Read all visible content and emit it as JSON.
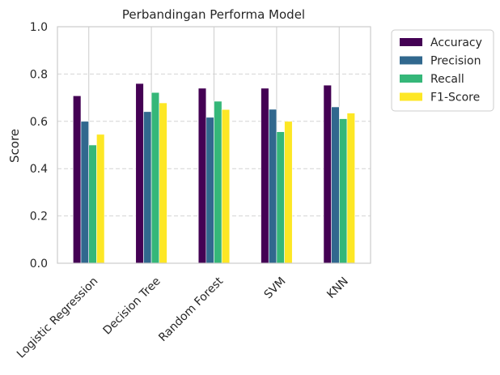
{
  "chart_data": {
    "type": "bar",
    "title": "Perbandingan Performa Model",
    "xlabel": "",
    "ylabel": "Score",
    "ylim": [
      0,
      1.0
    ],
    "yticks": [
      "0.0",
      "0.2",
      "0.4",
      "0.6",
      "0.8",
      "1.0"
    ],
    "grid": "on",
    "legend_position": "outside-right-top",
    "categories": [
      "Logistic Regression",
      "Decision Tree",
      "Random Forest",
      "SVM",
      "KNN"
    ],
    "series": [
      {
        "name": "Accuracy",
        "color": "#440154",
        "values": [
          0.708,
          0.76,
          0.74,
          0.74,
          0.753
        ]
      },
      {
        "name": "Precision",
        "color": "#31688e",
        "values": [
          0.6,
          0.641,
          0.617,
          0.651,
          0.661
        ]
      },
      {
        "name": "Recall",
        "color": "#35b779",
        "values": [
          0.5,
          0.722,
          0.685,
          0.556,
          0.611
        ]
      },
      {
        "name": "F1-Score",
        "color": "#fde725",
        "values": [
          0.545,
          0.678,
          0.65,
          0.6,
          0.635
        ]
      }
    ]
  }
}
